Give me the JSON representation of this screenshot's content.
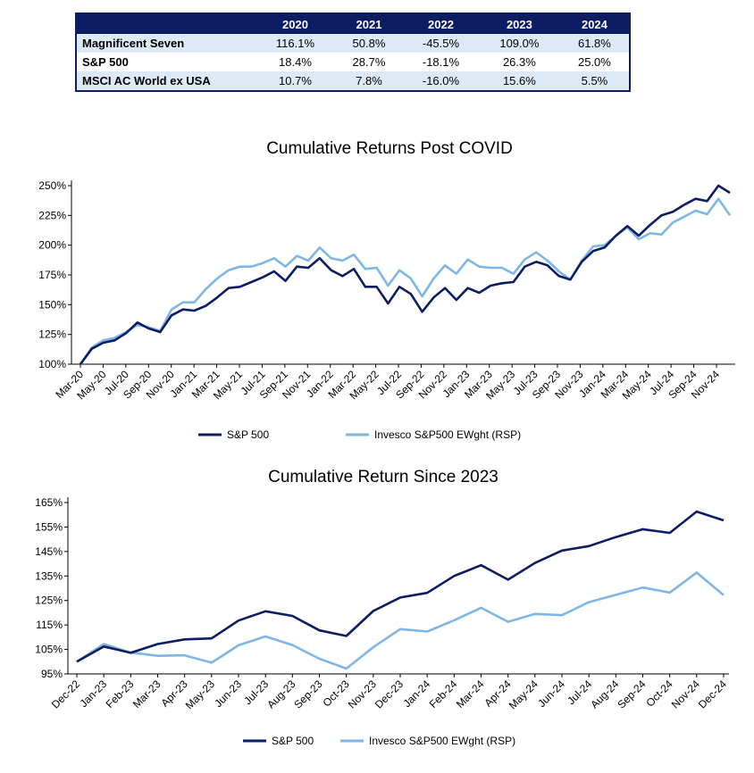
{
  "table": {
    "headers": [
      "",
      "2020",
      "2021",
      "2022",
      "2023",
      "2024"
    ],
    "rows": [
      [
        "Magnificent Seven",
        "116.1%",
        "50.8%",
        "-45.5%",
        "109.0%",
        "61.8%"
      ],
      [
        "S&P 500",
        "18.4%",
        "28.7%",
        "-18.1%",
        "26.3%",
        "25.0%"
      ],
      [
        "MSCI AC World ex USA",
        "10.7%",
        "7.8%",
        "-16.0%",
        "15.6%",
        "5.5%"
      ]
    ]
  },
  "colors": {
    "sp500": "#0c1d64",
    "rsp": "#7eb6e6",
    "header_bg": "#0c1d64",
    "row_alt": "#ddeaf6"
  },
  "chart_data": [
    {
      "type": "line",
      "title": "Cumulative Returns Post COVID",
      "ylim": [
        100,
        250
      ],
      "yticks": [
        "100%",
        "125%",
        "150%",
        "175%",
        "200%",
        "225%",
        "250%"
      ],
      "xticks": [
        "Mar-20",
        "May-20",
        "Jul-20",
        "Sep-20",
        "Nov-20",
        "Jan-21",
        "Mar-21",
        "May-21",
        "Jul-21",
        "Sep-21",
        "Nov-21",
        "Jan-22",
        "Mar-22",
        "May-22",
        "Jul-22",
        "Sep-22",
        "Nov-22",
        "Jan-23",
        "Mar-23",
        "May-23",
        "Jul-23",
        "Sep-23",
        "Nov-23",
        "Jan-24",
        "Mar-24",
        "May-24",
        "Jul-24",
        "Sep-24",
        "Nov-24"
      ],
      "legend_position": "bottom",
      "series": [
        {
          "name": "S&P 500",
          "values": [
            100,
            113,
            118,
            120,
            126,
            135,
            130,
            127,
            141,
            146,
            145,
            149,
            156,
            164,
            165,
            169,
            173,
            178,
            170,
            182,
            181,
            189,
            179,
            174,
            180,
            165,
            165,
            151,
            165,
            159,
            144,
            156,
            164,
            154,
            164,
            160,
            166,
            168,
            169,
            182,
            186,
            183,
            174,
            171,
            186,
            195,
            198,
            208,
            216,
            208,
            217,
            225,
            228,
            234,
            239,
            237,
            250,
            244
          ]
        },
        {
          "name": "Invesco S&P500 EWght (RSP)",
          "values": [
            100,
            114,
            120,
            122,
            127,
            133,
            131,
            128,
            146,
            152,
            152,
            163,
            172,
            179,
            182,
            182,
            185,
            189,
            182,
            191,
            187,
            198,
            189,
            187,
            192,
            180,
            181,
            166,
            179,
            172,
            157,
            172,
            183,
            176,
            188,
            182,
            181,
            181,
            176,
            188,
            194,
            187,
            178,
            171,
            187,
            199,
            200,
            208,
            215,
            205,
            210,
            209,
            219,
            224,
            229,
            226,
            239,
            225
          ]
        }
      ]
    },
    {
      "type": "line",
      "title": "Cumulative Return Since 2023",
      "ylim": [
        95,
        165
      ],
      "yticks": [
        "95%",
        "105%",
        "115%",
        "125%",
        "135%",
        "145%",
        "155%",
        "165%"
      ],
      "xticks": [
        "Dec-22",
        "Jan-23",
        "Feb-23",
        "Mar-23",
        "Apr-23",
        "May-23",
        "Jun-23",
        "Jul-23",
        "Aug-23",
        "Sep-23",
        "Oct-23",
        "Nov-23",
        "Dec-23",
        "Jan-24",
        "Feb-24",
        "Mar-24",
        "Apr-24",
        "May-24",
        "Jun-24",
        "Jul-24",
        "Aug-24",
        "Sep-24",
        "Oct-24",
        "Nov-24",
        "Dec-24"
      ],
      "legend_position": "bottom",
      "series": [
        {
          "name": "S&P 500",
          "values": [
            100,
            106.2,
            103.6,
            107.2,
            109.1,
            109.5,
            116.8,
            120.6,
            118.7,
            112.8,
            110.5,
            120.7,
            126.2,
            128.1,
            135.0,
            139.4,
            133.5,
            140.3,
            145.4,
            147.2,
            150.9,
            154.1,
            152.6,
            161.3,
            157.7
          ]
        },
        {
          "name": "Invesco S&P500 EWght (RSP)",
          "values": [
            100,
            107.2,
            103.7,
            102.4,
            102.6,
            99.6,
            106.7,
            110.3,
            106.8,
            101.2,
            97.2,
            105.9,
            113.3,
            112.3,
            116.9,
            122.0,
            116.3,
            119.5,
            119.0,
            124.3,
            127.3,
            130.3,
            128.2,
            136.4,
            127.2
          ]
        }
      ]
    }
  ]
}
